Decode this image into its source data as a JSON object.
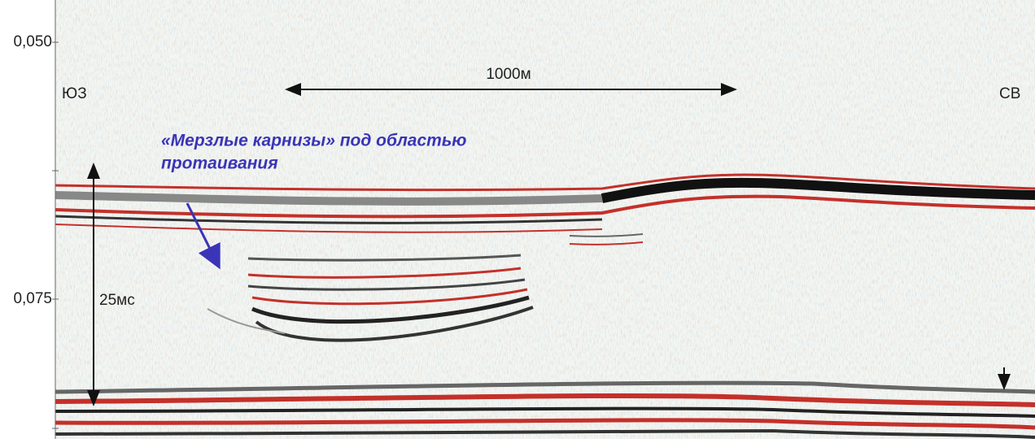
{
  "axis": {
    "labels": [
      "0,050",
      "0,075"
    ]
  },
  "annotations": {
    "left_direction": "ЮЗ",
    "right_direction": "СВ",
    "scale_bar": "1000м",
    "depth_bar": "25мс",
    "note": [
      "«Мерзлые карнизы» под областью",
      "протаивания"
    ]
  }
}
